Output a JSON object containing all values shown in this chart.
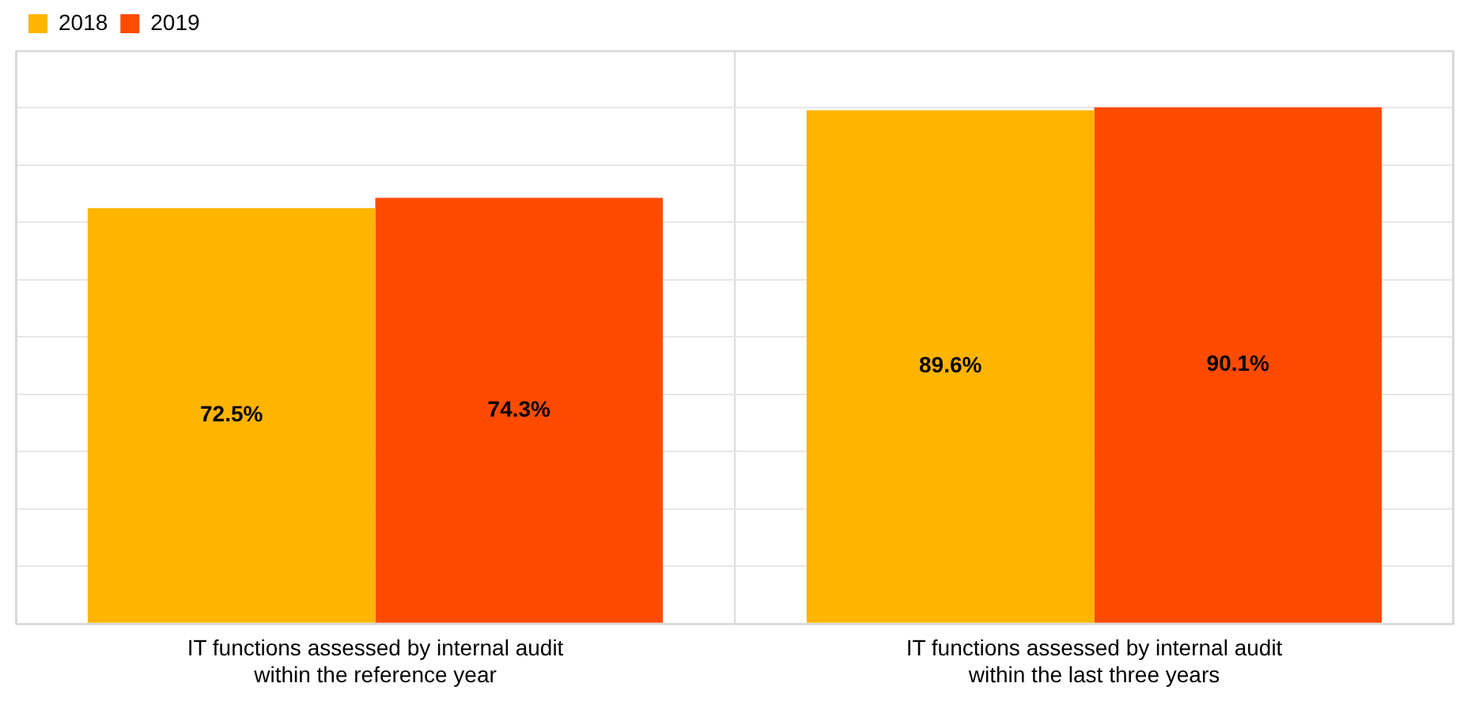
{
  "chart_data": {
    "type": "bar",
    "categories": [
      "IT functions assessed by internal audit within the reference year",
      "IT functions assessed by internal audit within the last three years"
    ],
    "series": [
      {
        "name": "2018",
        "color": "#ffb400",
        "values": [
          72.5,
          89.6
        ],
        "value_labels": [
          "72.5%",
          "89.6%"
        ]
      },
      {
        "name": "2019",
        "color": "#ff4b00",
        "values": [
          74.3,
          90.1
        ],
        "value_labels": [
          "74.3%",
          "90.1%"
        ]
      }
    ],
    "tick_labels": "x",
    "grid": true,
    "legend": "top left"
  }
}
